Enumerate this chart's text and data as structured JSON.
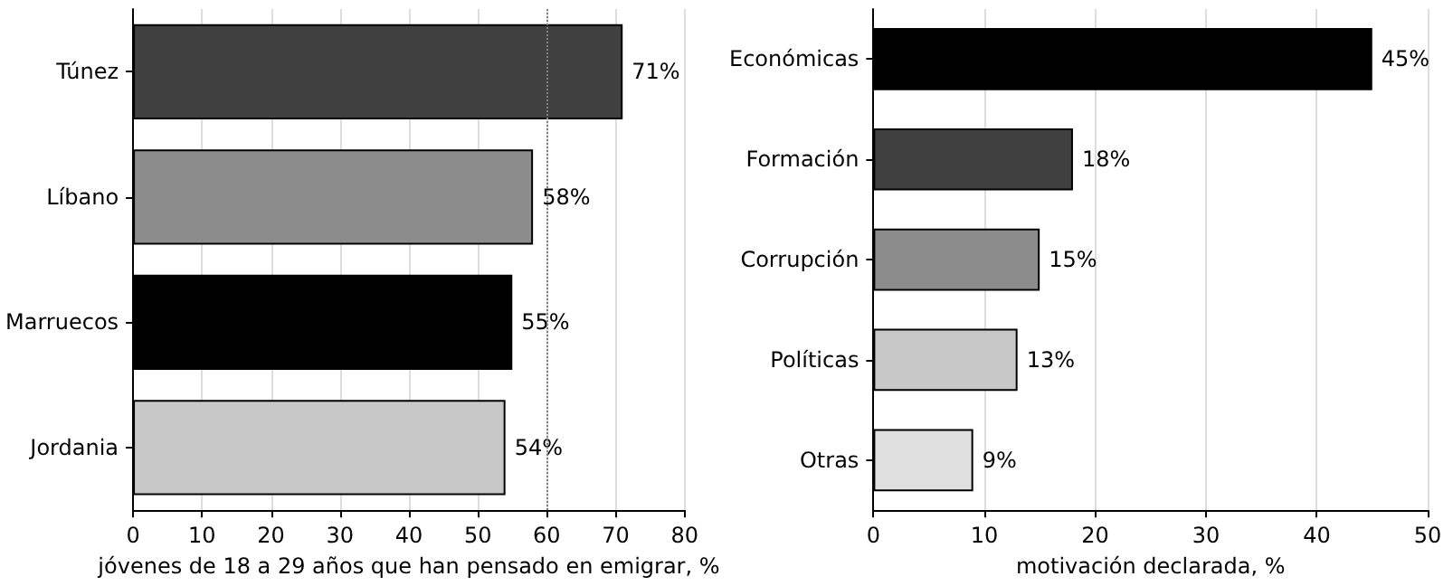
{
  "chart_data": [
    {
      "type": "bar",
      "orientation": "horizontal",
      "categories": [
        "Túnez",
        "Líbano",
        "Marruecos",
        "Jordania"
      ],
      "values": [
        71,
        58,
        55,
        54
      ],
      "colors": [
        "#404040",
        "#8c8c8c",
        "#000000",
        "#c8c8c8"
      ],
      "value_labels": [
        "71%",
        "58%",
        "55%",
        "54%"
      ],
      "xlabel": "jóvenes de 18 a 29 años que han pensado en emigrar, %",
      "xlim": [
        0,
        80
      ],
      "xticks": [
        0,
        10,
        20,
        30,
        40,
        50,
        60,
        70,
        80
      ],
      "grid": "x",
      "ref_lines": [
        {
          "axis": "x",
          "value": 60,
          "color": "#808080",
          "line_style": "dotted"
        }
      ]
    },
    {
      "type": "bar",
      "orientation": "horizontal",
      "categories": [
        "Económicas",
        "Formación",
        "Corrupción",
        "Políticas",
        "Otras"
      ],
      "values": [
        45,
        18,
        15,
        13,
        9
      ],
      "colors": [
        "#000000",
        "#404040",
        "#8c8c8c",
        "#c8c8c8",
        "#e0e0e0"
      ],
      "value_labels": [
        "45%",
        "18%",
        "15%",
        "13%",
        "9%"
      ],
      "xlabel": "motivación declarada, %",
      "xlim": [
        0,
        50
      ],
      "xticks": [
        0,
        10,
        20,
        30,
        40,
        50
      ],
      "grid": "x"
    }
  ]
}
